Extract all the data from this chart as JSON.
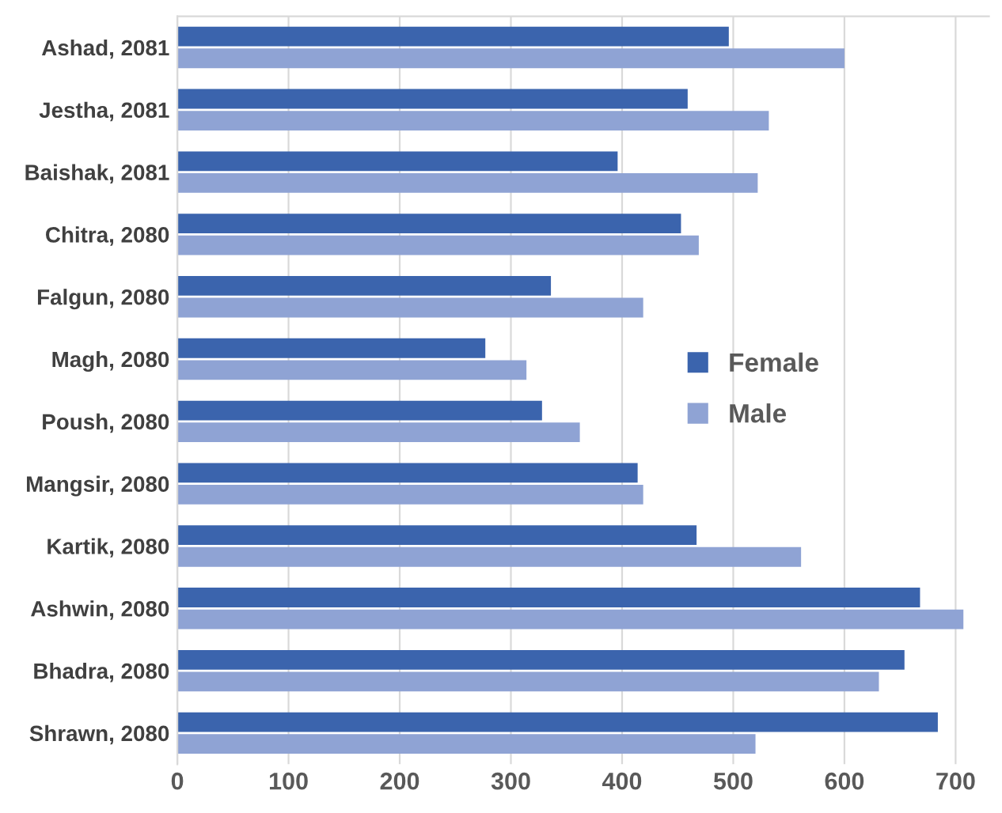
{
  "chart_data": {
    "type": "bar",
    "orientation": "horizontal",
    "categories": [
      "Ashad, 2081",
      "Jestha, 2081",
      "Baishak, 2081",
      "Chitra, 2080",
      "Falgun, 2080",
      "Magh, 2080",
      "Poush, 2080",
      "Mangsir, 2080",
      "Kartik, 2080",
      "Ashwin, 2080",
      "Bhadra, 2080",
      "Shrawn, 2080"
    ],
    "series": [
      {
        "name": "Female",
        "color": "#3b64ad",
        "values": [
          496,
          459,
          396,
          453,
          336,
          277,
          328,
          414,
          467,
          668,
          654,
          684
        ]
      },
      {
        "name": "Male",
        "color": "#8fa3d4",
        "values": [
          600,
          532,
          522,
          469,
          419,
          314,
          362,
          419,
          561,
          707,
          631,
          520
        ]
      }
    ],
    "xlim": [
      0,
      730
    ],
    "xticks": [
      0,
      100,
      200,
      300,
      400,
      500,
      600,
      700
    ],
    "grid": "x",
    "legend": "right"
  }
}
